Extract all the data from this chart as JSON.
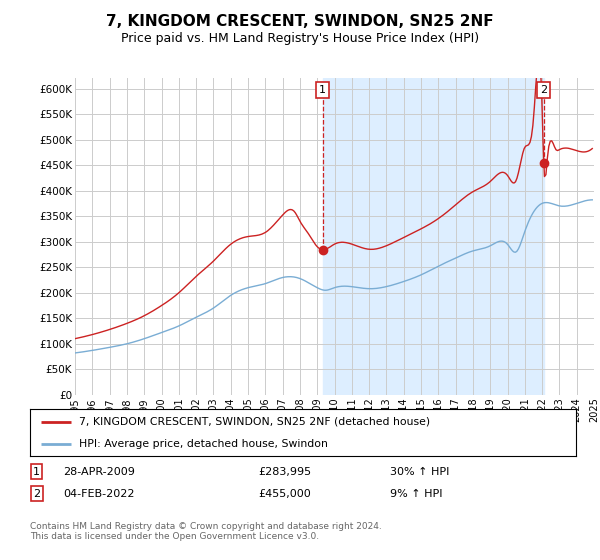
{
  "title": "7, KINGDOM CRESCENT, SWINDON, SN25 2NF",
  "subtitle": "Price paid vs. HM Land Registry's House Price Index (HPI)",
  "title_fontsize": 11,
  "subtitle_fontsize": 9,
  "background_color": "#ffffff",
  "plot_bg_color": "#ffffff",
  "grid_color": "#cccccc",
  "hpi_line_color": "#7aadd4",
  "price_line_color": "#cc2222",
  "shaded_color": "#ddeeff",
  "annotation1_date": "28-APR-2009",
  "annotation1_price": "£283,995",
  "annotation1_hpi": "30% ↑ HPI",
  "annotation2_date": "04-FEB-2022",
  "annotation2_price": "£455,000",
  "annotation2_hpi": "9% ↑ HPI",
  "legend_line1": "7, KINGDOM CRESCENT, SWINDON, SN25 2NF (detached house)",
  "legend_line2": "HPI: Average price, detached house, Swindon",
  "footer": "Contains HM Land Registry data © Crown copyright and database right 2024.\nThis data is licensed under the Open Government Licence v3.0.",
  "ylim": [
    0,
    620000
  ],
  "yticks": [
    0,
    50000,
    100000,
    150000,
    200000,
    250000,
    300000,
    350000,
    400000,
    450000,
    500000,
    550000,
    600000
  ],
  "ytick_labels": [
    "£0",
    "£50K",
    "£100K",
    "£150K",
    "£200K",
    "£250K",
    "£300K",
    "£350K",
    "£400K",
    "£450K",
    "£500K",
    "£550K",
    "£600K"
  ],
  "point1_x": 2009.32,
  "point1_y": 283995,
  "point2_x": 2022.09,
  "point2_y": 455000,
  "xlim_start": 1995.0,
  "xlim_end": 2025.0
}
